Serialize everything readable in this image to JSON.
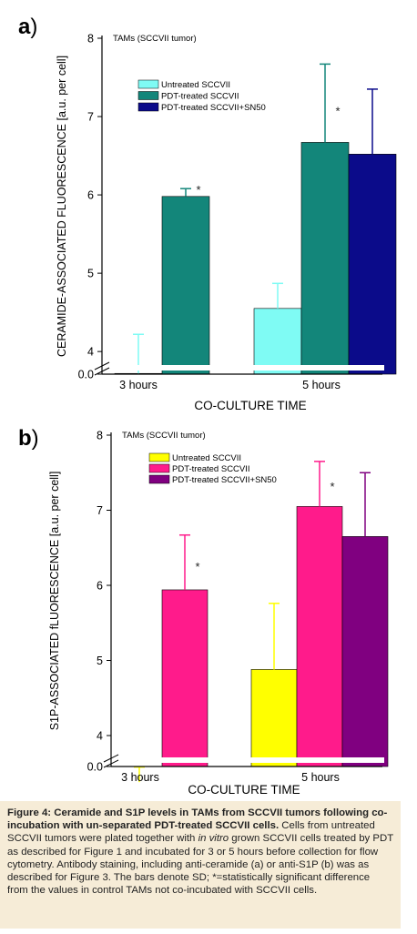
{
  "chart_data": [
    {
      "panel_label": "a",
      "type": "bar",
      "title": "TAMs (SCCVII tumor)",
      "xlabel": "CO-CULTURE TIME",
      "ylabel": "CERAMIDE-ASSOCIATED FLUORESCENCE [a.u. per cell]",
      "categories": [
        "3 hours",
        "5 hours"
      ],
      "yticks": [
        "0.0",
        "4",
        "5",
        "6",
        "7",
        "8"
      ],
      "ylim": [
        3.2,
        8
      ],
      "axis_break": true,
      "legend_position": "top-left",
      "series": [
        {
          "name": "Untreated SCCVII",
          "color": "#7ffbf4",
          "values": [
            3.72,
            4.55
          ],
          "errors": [
            0.5,
            0.32
          ],
          "sig": [
            false,
            false
          ]
        },
        {
          "name": "PDT-treated SCCVII",
          "color": "#13867a",
          "values": [
            5.98,
            6.67
          ],
          "errors": [
            0.1,
            1.0
          ],
          "sig": [
            true,
            true
          ]
        },
        {
          "name": "PDT-treated SCCVII+SN50",
          "color": "#0b0b8a",
          "values": [
            null,
            6.52
          ],
          "errors": [
            null,
            0.83
          ],
          "sig": [
            false,
            false
          ]
        }
      ],
      "annotation": "*"
    },
    {
      "panel_label": "b",
      "type": "bar",
      "title": "TAMs (SCCVII tumor)",
      "xlabel": "CO-CULTURE TIME",
      "ylabel": "S1P-ASSOCIATED fLUORESCENCE [a.u. per cell]",
      "categories": [
        "3 hours",
        "5 hours"
      ],
      "yticks": [
        "0.0",
        "4",
        "5",
        "6",
        "7",
        "8"
      ],
      "ylim": [
        3.2,
        8
      ],
      "axis_break": true,
      "legend_position": "top-left",
      "series": [
        {
          "name": "Untreated SCCVII",
          "color": "#ffff00",
          "values": [
            3.38,
            4.88
          ],
          "errors": [
            0.2,
            0.88
          ],
          "sig": [
            false,
            false
          ]
        },
        {
          "name": "PDT-treated SCCVII",
          "color": "#ff1b8b",
          "values": [
            5.94,
            7.05
          ],
          "errors": [
            0.73,
            0.6
          ],
          "sig": [
            true,
            true
          ]
        },
        {
          "name": "PDT-treated SCCVII+SN50",
          "color": "#800080",
          "values": [
            null,
            6.65
          ],
          "errors": [
            null,
            0.85
          ],
          "sig": [
            false,
            false
          ]
        }
      ],
      "annotation": "*"
    }
  ],
  "caption": {
    "bold": "Figure 4: Ceramide and S1P levels in TAMs from SCCVII tumors following co-incubation with un-separated PDT-treated SCCVII cells.",
    "text1": " Cells from untreated SCCVII tumors were plated together with ",
    "italic": "in vitro",
    "text2": " grown SCCVII cells treated by PDT as described for Figure 1 and incubated for 3 or 5 hours before collection for flow cytometry. Antibody staining, including anti-ceramide (a) or anti-S1P (b) was as described for Figure 3. The bars denote SD; *=statistically significant difference from the values in control TAMs not co-incubated with SCCVII cells."
  }
}
